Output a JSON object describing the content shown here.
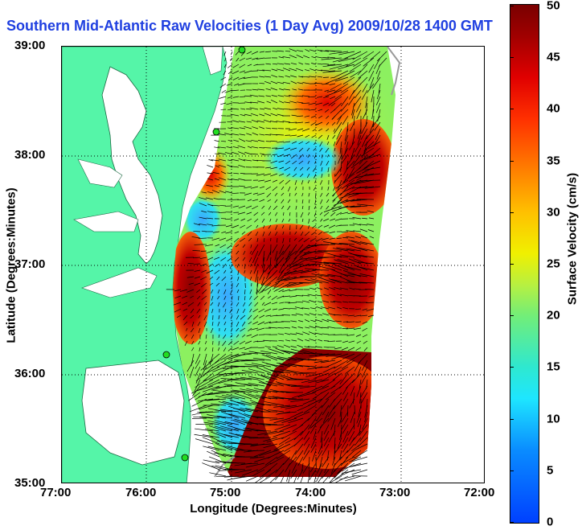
{
  "title": "Southern Mid-Atlantic Raw Velocities (1 Day Avg) 2009/10/28 1400 GMT",
  "axes": {
    "xlabel": "Longitude (Degrees:Minutes)",
    "ylabel": "Latitude (Degrees:Minutes)",
    "x_ticks": [
      "77:00",
      "76:00",
      "75:00",
      "74:00",
      "73:00",
      "72:00"
    ],
    "y_ticks": [
      "39:00",
      "38:00",
      "37:00",
      "36:00",
      "35:00"
    ]
  },
  "colorbar": {
    "label": "Surface Velocity (cm/s)",
    "ticks": [
      "50",
      "45",
      "40",
      "35",
      "30",
      "25",
      "20",
      "15",
      "10",
      "5",
      "0"
    ],
    "min": 0,
    "max": 50,
    "unit": "cm/s"
  },
  "colors": {
    "land": "#55f5a8",
    "water": "#ffffff",
    "title": "#1f3fe0",
    "station": "#22dd22"
  },
  "stations_count_visible": 4
}
